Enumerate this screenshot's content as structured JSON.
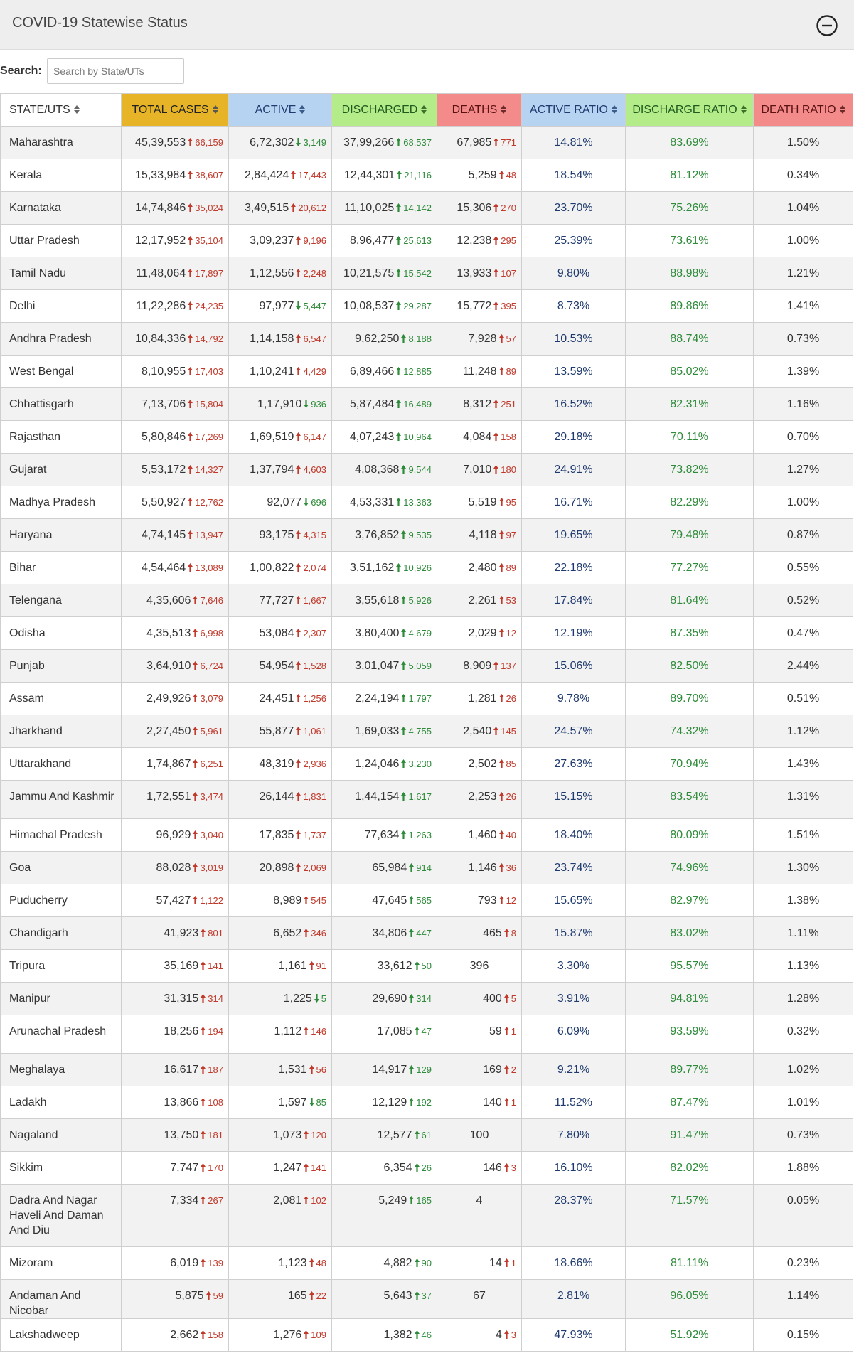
{
  "header": {
    "title": "COVID-19 Statewise Status",
    "collapse_icon": "minus-circle-icon"
  },
  "search": {
    "label": "Search:",
    "placeholder": "Search by State/UTs",
    "value": ""
  },
  "colors": {
    "total_cases_header": "#e6b426",
    "active_header": "#b7d3f2",
    "discharged_header": "#b5ec8a",
    "deaths_header": "#f38b8b",
    "active_ratio_header": "#b7d3f2",
    "discharge_ratio_header": "#b5ec8a",
    "death_ratio_header": "#f38b8b",
    "increase_red": "#c0392b",
    "increase_green": "#2e8b3a"
  },
  "table": {
    "columns": [
      {
        "label": "STATE/UTS"
      },
      {
        "label": "TOTAL CASES"
      },
      {
        "label": "ACTIVE"
      },
      {
        "label": "DISCHARGED"
      },
      {
        "label": "DEATHS"
      },
      {
        "label": "ACTIVE RATIO"
      },
      {
        "label": "DISCHARGE RATIO"
      },
      {
        "label": "DEATH RATIO"
      }
    ],
    "rows": [
      {
        "state": "Maharashtra",
        "total": "45,39,553",
        "total_delta": "66,159",
        "active": "6,72,302",
        "active_delta": "3,149",
        "active_dir": "down",
        "discharged": "37,99,266",
        "discharged_delta": "68,537",
        "deaths": "67,985",
        "deaths_delta": "771",
        "active_ratio": "14.81%",
        "discharge_ratio": "83.69%",
        "death_ratio": "1.50%"
      },
      {
        "state": "Kerala",
        "total": "15,33,984",
        "total_delta": "38,607",
        "active": "2,84,424",
        "active_delta": "17,443",
        "active_dir": "up",
        "discharged": "12,44,301",
        "discharged_delta": "21,116",
        "deaths": "5,259",
        "deaths_delta": "48",
        "active_ratio": "18.54%",
        "discharge_ratio": "81.12%",
        "death_ratio": "0.34%"
      },
      {
        "state": "Karnataka",
        "total": "14,74,846",
        "total_delta": "35,024",
        "active": "3,49,515",
        "active_delta": "20,612",
        "active_dir": "up",
        "discharged": "11,10,025",
        "discharged_delta": "14,142",
        "deaths": "15,306",
        "deaths_delta": "270",
        "active_ratio": "23.70%",
        "discharge_ratio": "75.26%",
        "death_ratio": "1.04%"
      },
      {
        "state": "Uttar Pradesh",
        "total": "12,17,952",
        "total_delta": "35,104",
        "active": "3,09,237",
        "active_delta": "9,196",
        "active_dir": "up",
        "discharged": "8,96,477",
        "discharged_delta": "25,613",
        "deaths": "12,238",
        "deaths_delta": "295",
        "active_ratio": "25.39%",
        "discharge_ratio": "73.61%",
        "death_ratio": "1.00%"
      },
      {
        "state": "Tamil Nadu",
        "total": "11,48,064",
        "total_delta": "17,897",
        "active": "1,12,556",
        "active_delta": "2,248",
        "active_dir": "up",
        "discharged": "10,21,575",
        "discharged_delta": "15,542",
        "deaths": "13,933",
        "deaths_delta": "107",
        "active_ratio": "9.80%",
        "discharge_ratio": "88.98%",
        "death_ratio": "1.21%"
      },
      {
        "state": "Delhi",
        "total": "11,22,286",
        "total_delta": "24,235",
        "active": "97,977",
        "active_delta": "5,447",
        "active_dir": "down",
        "discharged": "10,08,537",
        "discharged_delta": "29,287",
        "deaths": "15,772",
        "deaths_delta": "395",
        "active_ratio": "8.73%",
        "discharge_ratio": "89.86%",
        "death_ratio": "1.41%"
      },
      {
        "state": "Andhra Pradesh",
        "total": "10,84,336",
        "total_delta": "14,792",
        "active": "1,14,158",
        "active_delta": "6,547",
        "active_dir": "up",
        "discharged": "9,62,250",
        "discharged_delta": "8,188",
        "deaths": "7,928",
        "deaths_delta": "57",
        "active_ratio": "10.53%",
        "discharge_ratio": "88.74%",
        "death_ratio": "0.73%"
      },
      {
        "state": "West Bengal",
        "total": "8,10,955",
        "total_delta": "17,403",
        "active": "1,10,241",
        "active_delta": "4,429",
        "active_dir": "up",
        "discharged": "6,89,466",
        "discharged_delta": "12,885",
        "deaths": "11,248",
        "deaths_delta": "89",
        "active_ratio": "13.59%",
        "discharge_ratio": "85.02%",
        "death_ratio": "1.39%"
      },
      {
        "state": "Chhattisgarh",
        "total": "7,13,706",
        "total_delta": "15,804",
        "active": "1,17,910",
        "active_delta": "936",
        "active_dir": "down",
        "discharged": "5,87,484",
        "discharged_delta": "16,489",
        "deaths": "8,312",
        "deaths_delta": "251",
        "active_ratio": "16.52%",
        "discharge_ratio": "82.31%",
        "death_ratio": "1.16%"
      },
      {
        "state": "Rajasthan",
        "total": "5,80,846",
        "total_delta": "17,269",
        "active": "1,69,519",
        "active_delta": "6,147",
        "active_dir": "up",
        "discharged": "4,07,243",
        "discharged_delta": "10,964",
        "deaths": "4,084",
        "deaths_delta": "158",
        "active_ratio": "29.18%",
        "discharge_ratio": "70.11%",
        "death_ratio": "0.70%"
      },
      {
        "state": "Gujarat",
        "total": "5,53,172",
        "total_delta": "14,327",
        "active": "1,37,794",
        "active_delta": "4,603",
        "active_dir": "up",
        "discharged": "4,08,368",
        "discharged_delta": "9,544",
        "deaths": "7,010",
        "deaths_delta": "180",
        "active_ratio": "24.91%",
        "discharge_ratio": "73.82%",
        "death_ratio": "1.27%"
      },
      {
        "state": "Madhya Pradesh",
        "total": "5,50,927",
        "total_delta": "12,762",
        "active": "92,077",
        "active_delta": "696",
        "active_dir": "down",
        "discharged": "4,53,331",
        "discharged_delta": "13,363",
        "deaths": "5,519",
        "deaths_delta": "95",
        "active_ratio": "16.71%",
        "discharge_ratio": "82.29%",
        "death_ratio": "1.00%"
      },
      {
        "state": "Haryana",
        "total": "4,74,145",
        "total_delta": "13,947",
        "active": "93,175",
        "active_delta": "4,315",
        "active_dir": "up",
        "discharged": "3,76,852",
        "discharged_delta": "9,535",
        "deaths": "4,118",
        "deaths_delta": "97",
        "active_ratio": "19.65%",
        "discharge_ratio": "79.48%",
        "death_ratio": "0.87%"
      },
      {
        "state": "Bihar",
        "total": "4,54,464",
        "total_delta": "13,089",
        "active": "1,00,822",
        "active_delta": "2,074",
        "active_dir": "up",
        "discharged": "3,51,162",
        "discharged_delta": "10,926",
        "deaths": "2,480",
        "deaths_delta": "89",
        "active_ratio": "22.18%",
        "discharge_ratio": "77.27%",
        "death_ratio": "0.55%"
      },
      {
        "state": "Telengana",
        "total": "4,35,606",
        "total_delta": "7,646",
        "active": "77,727",
        "active_delta": "1,667",
        "active_dir": "up",
        "discharged": "3,55,618",
        "discharged_delta": "5,926",
        "deaths": "2,261",
        "deaths_delta": "53",
        "active_ratio": "17.84%",
        "discharge_ratio": "81.64%",
        "death_ratio": "0.52%"
      },
      {
        "state": "Odisha",
        "total": "4,35,513",
        "total_delta": "6,998",
        "active": "53,084",
        "active_delta": "2,307",
        "active_dir": "up",
        "discharged": "3,80,400",
        "discharged_delta": "4,679",
        "deaths": "2,029",
        "deaths_delta": "12",
        "active_ratio": "12.19%",
        "discharge_ratio": "87.35%",
        "death_ratio": "0.47%"
      },
      {
        "state": "Punjab",
        "total": "3,64,910",
        "total_delta": "6,724",
        "active": "54,954",
        "active_delta": "1,528",
        "active_dir": "up",
        "discharged": "3,01,047",
        "discharged_delta": "5,059",
        "deaths": "8,909",
        "deaths_delta": "137",
        "active_ratio": "15.06%",
        "discharge_ratio": "82.50%",
        "death_ratio": "2.44%"
      },
      {
        "state": "Assam",
        "total": "2,49,926",
        "total_delta": "3,079",
        "active": "24,451",
        "active_delta": "1,256",
        "active_dir": "up",
        "discharged": "2,24,194",
        "discharged_delta": "1,797",
        "deaths": "1,281",
        "deaths_delta": "26",
        "active_ratio": "9.78%",
        "discharge_ratio": "89.70%",
        "death_ratio": "0.51%"
      },
      {
        "state": "Jharkhand",
        "total": "2,27,450",
        "total_delta": "5,961",
        "active": "55,877",
        "active_delta": "1,061",
        "active_dir": "up",
        "discharged": "1,69,033",
        "discharged_delta": "4,755",
        "deaths": "2,540",
        "deaths_delta": "145",
        "active_ratio": "24.57%",
        "discharge_ratio": "74.32%",
        "death_ratio": "1.12%"
      },
      {
        "state": "Uttarakhand",
        "total": "1,74,867",
        "total_delta": "6,251",
        "active": "48,319",
        "active_delta": "2,936",
        "active_dir": "up",
        "discharged": "1,24,046",
        "discharged_delta": "3,230",
        "deaths": "2,502",
        "deaths_delta": "85",
        "active_ratio": "27.63%",
        "discharge_ratio": "70.94%",
        "death_ratio": "1.43%"
      },
      {
        "state": "Jammu And Kashmir",
        "total": "1,72,551",
        "total_delta": "3,474",
        "active": "26,144",
        "active_delta": "1,831",
        "active_dir": "up",
        "discharged": "1,44,154",
        "discharged_delta": "1,617",
        "deaths": "2,253",
        "deaths_delta": "26",
        "active_ratio": "15.15%",
        "discharge_ratio": "83.54%",
        "death_ratio": "1.31%"
      },
      {
        "state": "Himachal Pradesh",
        "total": "96,929",
        "total_delta": "3,040",
        "active": "17,835",
        "active_delta": "1,737",
        "active_dir": "up",
        "discharged": "77,634",
        "discharged_delta": "1,263",
        "deaths": "1,460",
        "deaths_delta": "40",
        "active_ratio": "18.40%",
        "discharge_ratio": "80.09%",
        "death_ratio": "1.51%"
      },
      {
        "state": "Goa",
        "total": "88,028",
        "total_delta": "3,019",
        "active": "20,898",
        "active_delta": "2,069",
        "active_dir": "up",
        "discharged": "65,984",
        "discharged_delta": "914",
        "deaths": "1,146",
        "deaths_delta": "36",
        "active_ratio": "23.74%",
        "discharge_ratio": "74.96%",
        "death_ratio": "1.30%"
      },
      {
        "state": "Puducherry",
        "total": "57,427",
        "total_delta": "1,122",
        "active": "8,989",
        "active_delta": "545",
        "active_dir": "up",
        "discharged": "47,645",
        "discharged_delta": "565",
        "deaths": "793",
        "deaths_delta": "12",
        "active_ratio": "15.65%",
        "discharge_ratio": "82.97%",
        "death_ratio": "1.38%"
      },
      {
        "state": "Chandigarh",
        "total": "41,923",
        "total_delta": "801",
        "active": "6,652",
        "active_delta": "346",
        "active_dir": "up",
        "discharged": "34,806",
        "discharged_delta": "447",
        "deaths": "465",
        "deaths_delta": "8",
        "active_ratio": "15.87%",
        "discharge_ratio": "83.02%",
        "death_ratio": "1.11%"
      },
      {
        "state": "Tripura",
        "total": "35,169",
        "total_delta": "141",
        "active": "1,161",
        "active_delta": "91",
        "active_dir": "up",
        "discharged": "33,612",
        "discharged_delta": "50",
        "deaths": "396",
        "deaths_delta": "",
        "active_ratio": "3.30%",
        "discharge_ratio": "95.57%",
        "death_ratio": "1.13%"
      },
      {
        "state": "Manipur",
        "total": "31,315",
        "total_delta": "314",
        "active": "1,225",
        "active_delta": "5",
        "active_dir": "down",
        "discharged": "29,690",
        "discharged_delta": "314",
        "deaths": "400",
        "deaths_delta": "5",
        "active_ratio": "3.91%",
        "discharge_ratio": "94.81%",
        "death_ratio": "1.28%"
      },
      {
        "state": "Arunachal Pradesh",
        "total": "18,256",
        "total_delta": "194",
        "active": "1,112",
        "active_delta": "146",
        "active_dir": "up",
        "discharged": "17,085",
        "discharged_delta": "47",
        "deaths": "59",
        "deaths_delta": "1",
        "active_ratio": "6.09%",
        "discharge_ratio": "93.59%",
        "death_ratio": "0.32%"
      },
      {
        "state": "Meghalaya",
        "total": "16,617",
        "total_delta": "187",
        "active": "1,531",
        "active_delta": "56",
        "active_dir": "up",
        "discharged": "14,917",
        "discharged_delta": "129",
        "deaths": "169",
        "deaths_delta": "2",
        "active_ratio": "9.21%",
        "discharge_ratio": "89.77%",
        "death_ratio": "1.02%"
      },
      {
        "state": "Ladakh",
        "total": "13,866",
        "total_delta": "108",
        "active": "1,597",
        "active_delta": "85",
        "active_dir": "down",
        "discharged": "12,129",
        "discharged_delta": "192",
        "deaths": "140",
        "deaths_delta": "1",
        "active_ratio": "11.52%",
        "discharge_ratio": "87.47%",
        "death_ratio": "1.01%"
      },
      {
        "state": "Nagaland",
        "total": "13,750",
        "total_delta": "181",
        "active": "1,073",
        "active_delta": "120",
        "active_dir": "up",
        "discharged": "12,577",
        "discharged_delta": "61",
        "deaths": "100",
        "deaths_delta": "",
        "active_ratio": "7.80%",
        "discharge_ratio": "91.47%",
        "death_ratio": "0.73%"
      },
      {
        "state": "Sikkim",
        "total": "7,747",
        "total_delta": "170",
        "active": "1,247",
        "active_delta": "141",
        "active_dir": "up",
        "discharged": "6,354",
        "discharged_delta": "26",
        "deaths": "146",
        "deaths_delta": "3",
        "active_ratio": "16.10%",
        "discharge_ratio": "82.02%",
        "death_ratio": "1.88%"
      },
      {
        "state": "Dadra And Nagar Haveli And Daman And Diu",
        "total": "7,334",
        "total_delta": "267",
        "active": "2,081",
        "active_delta": "102",
        "active_dir": "up",
        "discharged": "5,249",
        "discharged_delta": "165",
        "deaths": "4",
        "deaths_delta": "",
        "active_ratio": "28.37%",
        "discharge_ratio": "71.57%",
        "death_ratio": "0.05%"
      },
      {
        "state": "Mizoram",
        "total": "6,019",
        "total_delta": "139",
        "active": "1,123",
        "active_delta": "48",
        "active_dir": "up",
        "discharged": "4,882",
        "discharged_delta": "90",
        "deaths": "14",
        "deaths_delta": "1",
        "active_ratio": "18.66%",
        "discharge_ratio": "81.11%",
        "death_ratio": "0.23%"
      },
      {
        "state": "Andaman And Nicobar",
        "total": "5,875",
        "total_delta": "59",
        "active": "165",
        "active_delta": "22",
        "active_dir": "up",
        "discharged": "5,643",
        "discharged_delta": "37",
        "deaths": "67",
        "deaths_delta": "",
        "active_ratio": "2.81%",
        "discharge_ratio": "96.05%",
        "death_ratio": "1.14%"
      },
      {
        "state": "Lakshadweep",
        "total": "2,662",
        "total_delta": "158",
        "active": "1,276",
        "active_delta": "109",
        "active_dir": "up",
        "discharged": "1,382",
        "discharged_delta": "46",
        "deaths": "4",
        "deaths_delta": "3",
        "active_ratio": "47.93%",
        "discharge_ratio": "51.92%",
        "death_ratio": "0.15%"
      }
    ]
  }
}
